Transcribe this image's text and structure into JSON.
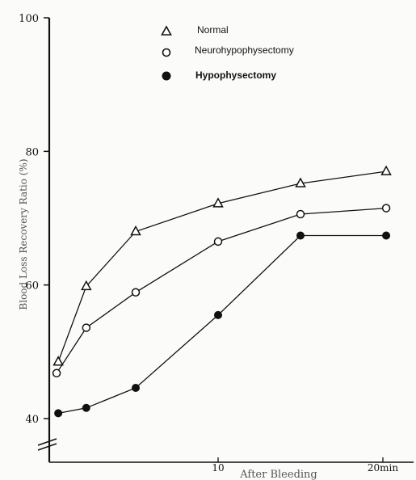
{
  "chart_data": {
    "type": "line",
    "xlabel": "After Bleeding",
    "ylabel": "Blood Loss Recovery Ratio (%)",
    "xlim": [
      0,
      20
    ],
    "ylim": [
      40,
      100
    ],
    "x_ticks": [
      {
        "value": 10,
        "label": "10"
      },
      {
        "value": 20,
        "label": "20min"
      }
    ],
    "y_ticks": [
      {
        "value": 40,
        "label": "40"
      },
      {
        "value": 60,
        "label": "60"
      },
      {
        "value": 80,
        "label": "80"
      },
      {
        "value": 100,
        "label": "100"
      }
    ],
    "legend_position": "top-center",
    "grid": false,
    "series": [
      {
        "name": "Normal",
        "marker": "triangle-open",
        "color": "#111111",
        "x": [
          0.3,
          2,
          5,
          10,
          15,
          20.2
        ],
        "y": [
          48.5,
          59.8,
          68,
          72.2,
          75.2,
          77
        ]
      },
      {
        "name": "Neurohypophysectomy",
        "marker": "circle-open",
        "color": "#111111",
        "x": [
          0.2,
          2,
          5,
          10,
          15,
          20.2
        ],
        "y": [
          46.8,
          53.6,
          58.9,
          66.5,
          70.6,
          71.5
        ]
      },
      {
        "name": "Hypophysectomy",
        "marker": "circle-filled",
        "color": "#111111",
        "x": [
          0.3,
          2,
          5,
          10,
          15,
          20.2
        ],
        "y": [
          40.8,
          41.6,
          44.6,
          55.5,
          67.4,
          67.4
        ]
      }
    ]
  }
}
